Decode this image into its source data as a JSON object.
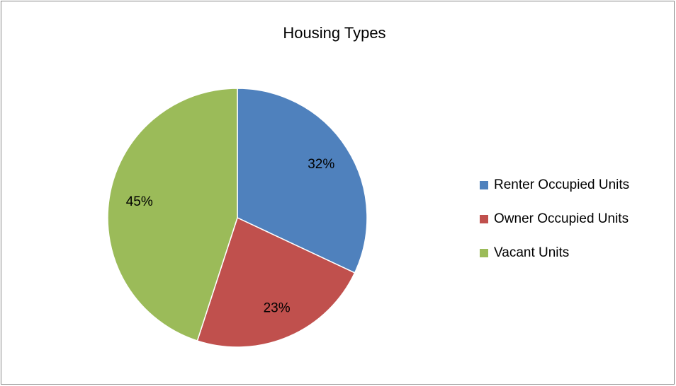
{
  "chart_data": {
    "type": "pie",
    "title": "Housing Types",
    "categories": [
      "Renter Occupied Units",
      "Owner Occupied Units",
      "Vacant Units"
    ],
    "values": [
      32,
      23,
      45
    ],
    "value_labels": [
      "32%",
      "23%",
      "45%"
    ],
    "colors": [
      "#4f81bd",
      "#c0504d",
      "#9bbb59"
    ],
    "legend": "right"
  }
}
